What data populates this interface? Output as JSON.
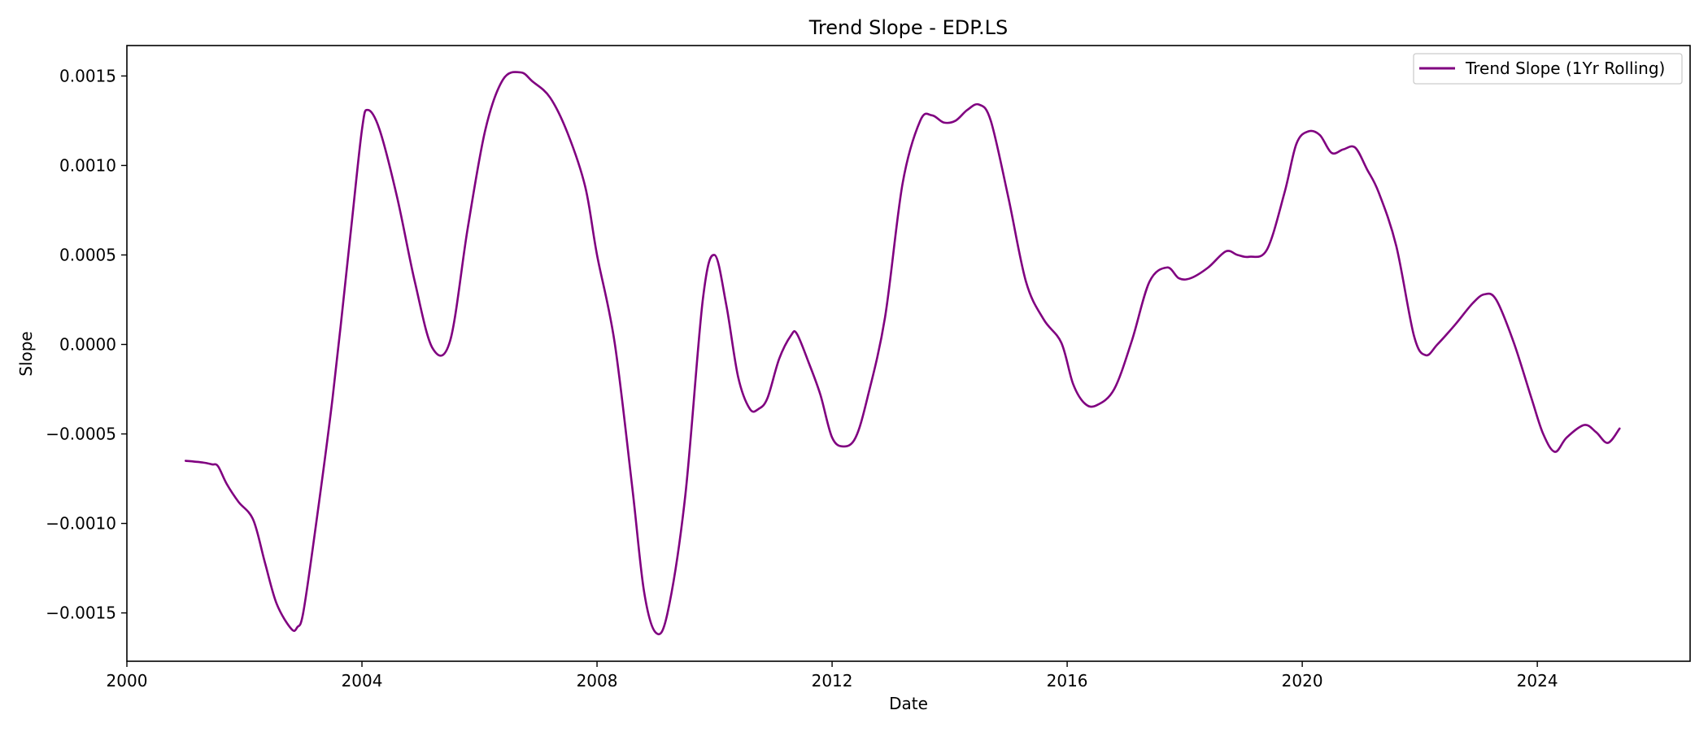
{
  "chart_data": {
    "type": "line",
    "title": "Trend Slope - EDP.LS",
    "xlabel": "Date",
    "ylabel": "Slope",
    "xlim": [
      2000.0,
      2026.6
    ],
    "ylim": [
      -0.00177,
      0.00167
    ],
    "x_ticks": [
      2000,
      2004,
      2008,
      2012,
      2016,
      2020,
      2024
    ],
    "x_tick_labels": [
      "2000",
      "2004",
      "2008",
      "2012",
      "2016",
      "2020",
      "2024"
    ],
    "y_ticks": [
      0.0015,
      0.001,
      0.0005,
      0.0,
      -0.0005,
      -0.001,
      -0.0015
    ],
    "y_tick_labels": [
      "0.0015",
      "0.0010",
      "0.0005",
      "0.0000",
      "−0.0005",
      "−0.0010",
      "−0.0015"
    ],
    "grid": false,
    "legend_position": "top-right",
    "series": [
      {
        "name": "Trend Slope (1Yr Rolling)",
        "color": "#800080",
        "x": [
          2001.0,
          2001.3,
          2001.45,
          2001.55,
          2001.7,
          2001.9,
          2002.15,
          2002.35,
          2002.55,
          2002.8,
          2002.9,
          2003.0,
          2003.2,
          2003.5,
          2003.8,
          2004.0,
          2004.1,
          2004.3,
          2004.6,
          2004.9,
          2005.2,
          2005.5,
          2005.8,
          2006.1,
          2006.4,
          2006.7,
          2006.9,
          2007.2,
          2007.5,
          2007.8,
          2008.0,
          2008.3,
          2008.6,
          2008.8,
          2009.0,
          2009.2,
          2009.5,
          2009.8,
          2010.0,
          2010.2,
          2010.4,
          2010.6,
          2010.75,
          2010.9,
          2011.1,
          2011.3,
          2011.4,
          2011.6,
          2011.8,
          2012.0,
          2012.2,
          2012.4,
          2012.6,
          2012.9,
          2013.2,
          2013.5,
          2013.7,
          2013.9,
          2014.1,
          2014.3,
          2014.5,
          2014.7,
          2015.0,
          2015.3,
          2015.6,
          2015.9,
          2016.1,
          2016.3,
          2016.5,
          2016.8,
          2017.1,
          2017.4,
          2017.7,
          2017.9,
          2018.1,
          2018.4,
          2018.7,
          2018.9,
          2019.1,
          2019.4,
          2019.7,
          2019.9,
          2020.1,
          2020.3,
          2020.5,
          2020.7,
          2020.9,
          2021.1,
          2021.3,
          2021.6,
          2021.9,
          2022.1,
          2022.3,
          2022.6,
          2022.9,
          2023.1,
          2023.3,
          2023.6,
          2023.9,
          2024.1,
          2024.3,
          2024.5,
          2024.8,
          2025.0,
          2025.2,
          2025.4
        ],
        "y": [
          -0.00065,
          -0.00066,
          -0.00067,
          -0.00068,
          -0.00078,
          -0.00088,
          -0.00098,
          -0.00122,
          -0.00145,
          -0.00159,
          -0.00158,
          -0.0015,
          -0.00105,
          -0.0003,
          0.0006,
          0.0012,
          0.00131,
          0.0012,
          0.00082,
          0.00035,
          -2e-05,
          2e-05,
          0.00065,
          0.0012,
          0.00148,
          0.00152,
          0.00147,
          0.00138,
          0.00118,
          0.00088,
          0.0005,
          1e-05,
          -0.0008,
          -0.00138,
          -0.00161,
          -0.0015,
          -0.00085,
          0.00025,
          0.0005,
          0.00022,
          -0.00018,
          -0.00036,
          -0.00036,
          -0.0003,
          -8e-05,
          5e-05,
          6e-05,
          -0.0001,
          -0.00028,
          -0.00052,
          -0.00057,
          -0.00052,
          -0.0003,
          0.00015,
          0.0009,
          0.00125,
          0.00128,
          0.00124,
          0.00125,
          0.00131,
          0.00134,
          0.00125,
          0.00082,
          0.00035,
          0.00014,
          1e-05,
          -0.00022,
          -0.00033,
          -0.00034,
          -0.00025,
          2e-05,
          0.00035,
          0.00043,
          0.00037,
          0.00037,
          0.00043,
          0.00052,
          0.0005,
          0.00049,
          0.00053,
          0.00085,
          0.00112,
          0.00119,
          0.00117,
          0.00107,
          0.00109,
          0.0011,
          0.00098,
          0.00085,
          0.00055,
          5e-05,
          -6e-05,
          0.0,
          0.00011,
          0.00023,
          0.00028,
          0.00025,
          1e-05,
          -0.0003,
          -0.0005,
          -0.0006,
          -0.00052,
          -0.00045,
          -0.00049,
          -0.00055,
          -0.00047
        ]
      }
    ]
  }
}
